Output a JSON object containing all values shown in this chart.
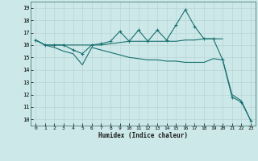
{
  "xlabel": "Humidex (Indice chaleur)",
  "bg_color": "#cce8e8",
  "line_color": "#1a7070",
  "xlim": [
    -0.5,
    23.5
  ],
  "ylim": [
    9.5,
    19.5
  ],
  "xticks": [
    0,
    1,
    2,
    3,
    4,
    5,
    6,
    7,
    8,
    9,
    10,
    11,
    12,
    13,
    14,
    15,
    16,
    17,
    18,
    19,
    20,
    21,
    22,
    23
  ],
  "yticks": [
    10,
    11,
    12,
    13,
    14,
    15,
    16,
    17,
    18,
    19
  ],
  "line1_x": [
    0,
    1,
    2,
    3,
    4,
    5,
    6,
    7,
    8,
    9,
    10,
    11,
    12,
    13,
    14,
    15,
    16,
    17,
    18,
    19,
    20,
    21,
    22,
    23
  ],
  "line1_y": [
    16.4,
    16.0,
    16.0,
    16.0,
    15.6,
    15.3,
    16.0,
    16.1,
    16.3,
    17.1,
    16.3,
    17.2,
    16.3,
    17.2,
    16.4,
    17.6,
    18.85,
    17.5,
    16.5,
    16.5,
    14.8,
    11.8,
    11.4,
    9.9
  ],
  "line2_x": [
    0,
    1,
    2,
    3,
    4,
    5,
    6,
    7,
    8,
    9,
    10,
    11,
    12,
    13,
    14,
    15,
    16,
    17,
    18,
    19,
    20
  ],
  "line2_y": [
    16.4,
    16.0,
    16.0,
    16.0,
    16.0,
    16.0,
    16.0,
    16.0,
    16.1,
    16.2,
    16.3,
    16.3,
    16.3,
    16.3,
    16.3,
    16.3,
    16.4,
    16.4,
    16.5,
    16.5,
    16.5
  ],
  "line3_x": [
    0,
    1,
    2,
    3,
    4,
    5,
    6,
    7,
    8,
    9,
    10,
    11,
    12,
    13,
    14,
    15,
    16,
    17,
    18,
    19,
    20,
    21,
    22,
    23
  ],
  "line3_y": [
    16.4,
    16.0,
    15.8,
    15.5,
    15.3,
    14.4,
    15.8,
    15.6,
    15.4,
    15.2,
    15.0,
    14.9,
    14.8,
    14.8,
    14.7,
    14.7,
    14.6,
    14.6,
    14.6,
    14.9,
    14.8,
    12.0,
    11.5,
    9.9
  ]
}
